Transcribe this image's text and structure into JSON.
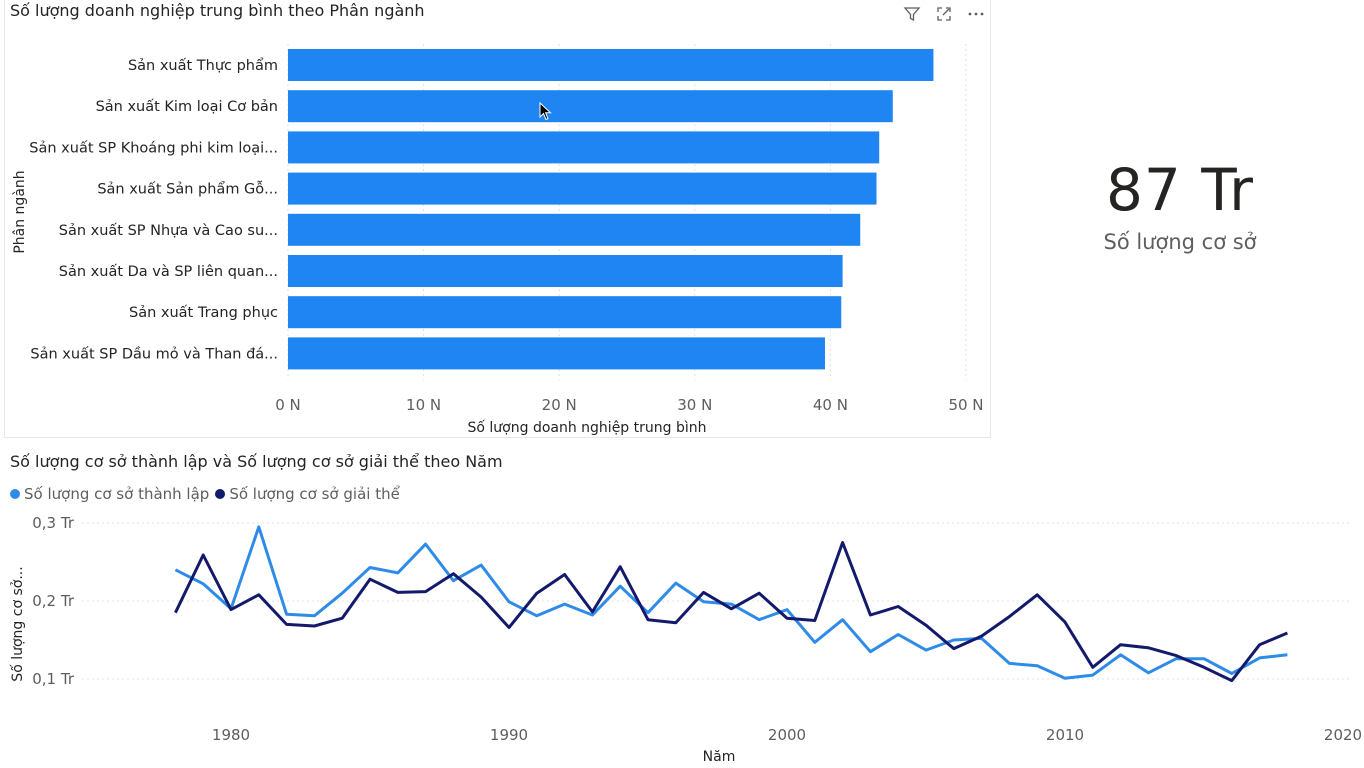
{
  "bar_visual": {
    "title": "Số lượng doanh nghiệp trung bình theo Phân ngành",
    "icons": [
      "filter-icon",
      "focus-mode-icon",
      "more-options-icon"
    ]
  },
  "kpi": {
    "value": "87 Tr",
    "label": "Số lượng cơ sở"
  },
  "line_visual": {
    "title": "Số lượng cơ sở thành lập và Số lượng cơ sở giải thể theo Năm"
  },
  "colors": {
    "bar": "#1f85f2",
    "series1": "#2e8be8",
    "series2": "#131a6b",
    "grid": "#e1e1e1"
  },
  "chart_data": [
    {
      "type": "bar",
      "orientation": "horizontal",
      "title": "Số lượng doanh nghiệp trung bình theo Phân ngành",
      "xlabel": "Số lượng doanh nghiệp trung bình",
      "ylabel": "Phân ngành",
      "categories": [
        "Sản xuất Thực phẩm",
        "Sản xuất Kim loại Cơ bản",
        "Sản xuất SP Khoáng phi kim loại...",
        "Sản xuất Sản phẩm Gỗ...",
        "Sản xuất SP Nhựa và Cao su...",
        "Sản xuất Da và SP liên quan...",
        "Sản xuất Trang phục",
        "Sản xuất SP Dầu mỏ và Than đá..."
      ],
      "values": [
        47.6,
        44.6,
        43.6,
        43.4,
        42.2,
        40.9,
        40.8,
        39.6
      ],
      "xlim": [
        0,
        50
      ],
      "xticks": [
        "0 N",
        "10 N",
        "20 N",
        "30 N",
        "40 N",
        "50 N"
      ],
      "grid": true
    },
    {
      "type": "line",
      "title": "Số lượng cơ sở thành lập và Số lượng cơ sở giải thể theo Năm",
      "xlabel": "Năm",
      "ylabel": "Số lượng cơ sở...",
      "x": [
        1978,
        1979,
        1980,
        1981,
        1982,
        1983,
        1984,
        1985,
        1986,
        1987,
        1988,
        1989,
        1990,
        1991,
        1992,
        1993,
        1994,
        1995,
        1996,
        1997,
        1998,
        1999,
        2000,
        2001,
        2002,
        2003,
        2004,
        2005,
        2006,
        2007,
        2008,
        2009,
        2010,
        2011,
        2012,
        2013,
        2014,
        2015,
        2016,
        2017,
        2018
      ],
      "series": [
        {
          "name": "Số lượng cơ sở thành lập",
          "values": [
            0.24,
            0.222,
            0.19,
            0.295,
            0.183,
            0.181,
            0.21,
            0.243,
            0.236,
            0.273,
            0.226,
            0.246,
            0.199,
            0.181,
            0.196,
            0.182,
            0.219,
            0.185,
            0.223,
            0.199,
            0.196,
            0.176,
            0.189,
            0.147,
            0.176,
            0.135,
            0.157,
            0.137,
            0.15,
            0.152,
            0.12,
            0.117,
            0.101,
            0.105,
            0.131,
            0.108,
            0.126,
            0.126,
            0.107,
            0.127,
            0.131
          ]
        },
        {
          "name": "Số lượng cơ sở giải thể",
          "values": [
            0.185,
            0.259,
            0.189,
            0.208,
            0.17,
            0.168,
            0.178,
            0.228,
            0.211,
            0.212,
            0.235,
            0.205,
            0.166,
            0.21,
            0.234,
            0.186,
            0.244,
            0.176,
            0.172,
            0.211,
            0.19,
            0.21,
            0.178,
            0.175,
            0.275,
            0.182,
            0.193,
            0.169,
            0.139,
            0.155,
            0.18,
            0.208,
            0.173,
            0.115,
            0.144,
            0.14,
            0.13,
            0.115,
            0.098,
            0.144,
            0.159
          ]
        }
      ],
      "xlim": [
        1975,
        2020
      ],
      "xticks": [
        "1980",
        "1990",
        "2000",
        "2010",
        "2020"
      ],
      "ylim": [
        0.1,
        0.3
      ],
      "yticks": [
        "0,1 Tr",
        "0,2 Tr",
        "0,3 Tr"
      ],
      "legend": "top-left",
      "grid": true
    }
  ]
}
